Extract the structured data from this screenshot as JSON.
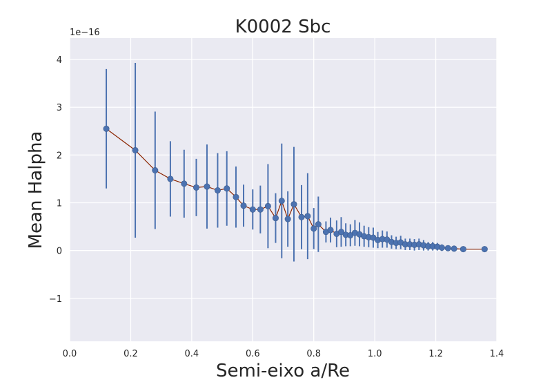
{
  "chart_data": {
    "type": "scatter",
    "title": "K0002 Sbc",
    "xlabel": "Semi-eixo a/Re",
    "ylabel": "Mean Halpha",
    "y_offset_label": "1e−16",
    "xlim": [
      0.0,
      1.4
    ],
    "ylim": [
      -1.9,
      4.45
    ],
    "xticks": [
      0.0,
      0.2,
      0.4,
      0.6,
      0.8,
      1.0,
      1.2,
      1.4
    ],
    "xtick_labels": [
      "0.0",
      "0.2",
      "0.4",
      "0.6",
      "0.8",
      "1.0",
      "1.2",
      "1.4"
    ],
    "yticks": [
      -1,
      0,
      1,
      2,
      3,
      4
    ],
    "ytick_labels": [
      "−1",
      "0",
      "1",
      "2",
      "3",
      "4"
    ],
    "grid": true,
    "colors": {
      "background": "#eaeaf2",
      "grid": "#ffffff",
      "points": "#4c72b0",
      "errorbars": "#4c72b0",
      "line": "#8b2500"
    },
    "series": [
      {
        "x": [
          0.12,
          0.215,
          0.28,
          0.33,
          0.375,
          0.415,
          0.45,
          0.485,
          0.515,
          0.545,
          0.57,
          0.6,
          0.625,
          0.65,
          0.675,
          0.695,
          0.715,
          0.735,
          0.76,
          0.78,
          0.8,
          0.815,
          0.84,
          0.855,
          0.875,
          0.89,
          0.905,
          0.92,
          0.935,
          0.95,
          0.965,
          0.98,
          0.995,
          1.01,
          1.025,
          1.04,
          1.055,
          1.07,
          1.085,
          1.1,
          1.115,
          1.13,
          1.145,
          1.16,
          1.175,
          1.19,
          1.205,
          1.22,
          1.24,
          1.26,
          1.29,
          1.36
        ],
        "y": [
          2.55,
          2.1,
          1.68,
          1.5,
          1.4,
          1.32,
          1.34,
          1.26,
          1.3,
          1.12,
          0.94,
          0.86,
          0.86,
          0.93,
          0.68,
          1.04,
          0.66,
          0.97,
          0.7,
          0.72,
          0.46,
          0.55,
          0.39,
          0.43,
          0.35,
          0.39,
          0.33,
          0.32,
          0.37,
          0.34,
          0.3,
          0.28,
          0.27,
          0.22,
          0.24,
          0.23,
          0.18,
          0.16,
          0.17,
          0.13,
          0.13,
          0.12,
          0.13,
          0.11,
          0.09,
          0.09,
          0.08,
          0.06,
          0.05,
          0.04,
          0.03,
          0.03
        ],
        "yerr": [
          1.25,
          1.83,
          1.23,
          0.79,
          0.71,
          0.6,
          0.88,
          0.78,
          0.78,
          0.64,
          0.44,
          0.42,
          0.5,
          0.88,
          0.52,
          1.2,
          0.58,
          1.2,
          0.67,
          0.9,
          0.43,
          0.58,
          0.22,
          0.26,
          0.28,
          0.31,
          0.24,
          0.23,
          0.27,
          0.25,
          0.22,
          0.21,
          0.21,
          0.17,
          0.18,
          0.17,
          0.14,
          0.13,
          0.14,
          0.12,
          0.12,
          0.12,
          0.12,
          0.11,
          0.09,
          0.09,
          0.08,
          0.07,
          0.05,
          0.04,
          0.03,
          0.03
        ]
      }
    ]
  }
}
